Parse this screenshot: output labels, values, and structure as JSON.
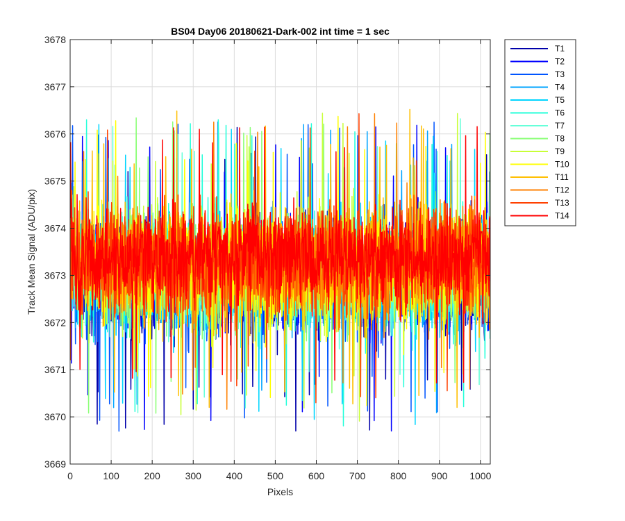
{
  "chart_data": {
    "type": "line",
    "title": "BS04 Day06 20180621-Dark-002 int time = 1 sec",
    "xlabel": "Pixels",
    "ylabel": "Track Mean Signal (ADU/pix)",
    "xlim": [
      0,
      1024
    ],
    "ylim": [
      3669,
      3678
    ],
    "xticks": [
      0,
      100,
      200,
      300,
      400,
      500,
      600,
      700,
      800,
      900,
      1000
    ],
    "yticks": [
      3669,
      3670,
      3671,
      3672,
      3673,
      3674,
      3675,
      3676,
      3677,
      3678
    ],
    "grid": true,
    "legend_position": "outside-top-right",
    "x_start": 1,
    "x_end": 1024,
    "series": [
      {
        "name": "T1",
        "color": "#0000aa",
        "mean": 3672.9,
        "spread": 0.95,
        "max": 3676.6,
        "min": 3669.7
      },
      {
        "name": "T2",
        "color": "#0000ff",
        "mean": 3672.95,
        "spread": 0.95,
        "max": 3676.5,
        "min": 3669.6
      },
      {
        "name": "T3",
        "color": "#0055ff",
        "mean": 3672.95,
        "spread": 0.95,
        "max": 3676.3,
        "min": 3669.2
      },
      {
        "name": "T4",
        "color": "#00a4ff",
        "mean": 3673.0,
        "spread": 0.95,
        "max": 3676.2,
        "min": 3669.0
      },
      {
        "name": "T5",
        "color": "#00d5ff",
        "mean": 3673.0,
        "spread": 0.95,
        "max": 3676.2,
        "min": 3669.3
      },
      {
        "name": "T6",
        "color": "#25ffda",
        "mean": 3673.05,
        "spread": 0.95,
        "max": 3676.3,
        "min": 3669.4
      },
      {
        "name": "T7",
        "color": "#66ffd9",
        "mean": 3673.1,
        "spread": 0.95,
        "max": 3676.8,
        "min": 3669.5
      },
      {
        "name": "T8",
        "color": "#8aff75",
        "mean": 3673.1,
        "spread": 0.95,
        "max": 3676.8,
        "min": 3669.9
      },
      {
        "name": "T9",
        "color": "#c8ff37",
        "mean": 3673.15,
        "spread": 0.95,
        "max": 3676.8,
        "min": 3669.8
      },
      {
        "name": "T10",
        "color": "#ffff00",
        "mean": 3673.2,
        "spread": 0.95,
        "max": 3676.8,
        "min": 3670.0
      },
      {
        "name": "T11",
        "color": "#ffbf00",
        "mean": 3673.2,
        "spread": 0.95,
        "max": 3676.9,
        "min": 3670.2
      },
      {
        "name": "T12",
        "color": "#ff8000",
        "mean": 3673.25,
        "spread": 0.95,
        "max": 3676.7,
        "min": 3669.6
      },
      {
        "name": "T13",
        "color": "#ff4000",
        "mean": 3673.3,
        "spread": 0.9,
        "max": 3676.5,
        "min": 3670.3
      },
      {
        "name": "T14",
        "color": "#ff0000",
        "mean": 3673.4,
        "spread": 0.85,
        "max": 3676.8,
        "min": 3669.7
      }
    ]
  }
}
